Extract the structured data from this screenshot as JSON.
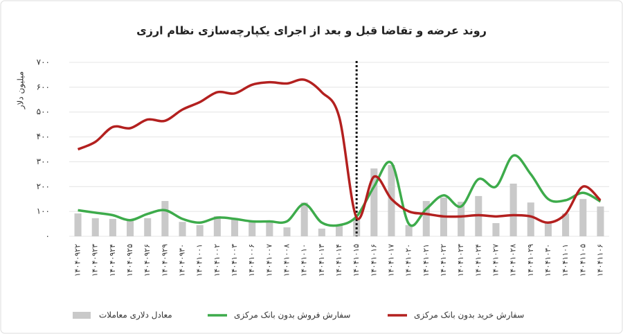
{
  "chart_data": {
    "type": "combo",
    "title": "روند عرضه و تقاضا قبل و بعد از اجرای یکپارچه‌سازی نظام ارزی",
    "y_label": "میلیون دلار",
    "categories": [
      "۱۴۰۴۰۹۲۲",
      "۱۴۰۴۰۹۲۳",
      "۱۴۰۴۰۹۲۴",
      "۱۴۰۴۰۹۲۵",
      "۱۴۰۴۰۹۲۶",
      "۱۴۰۴۰۹۲۹",
      "۱۴۰۴۰۹۳۰",
      "۱۴۰۴۱۰۰۱",
      "۱۴۰۴۱۰۰۲",
      "۱۴۰۴۱۰۰۳",
      "۱۴۰۴۱۰۰۶",
      "۱۴۰۴۱۰۰۷",
      "۱۴۰۴۱۰۰۸",
      "۱۴۰۴۱۰۱۰",
      "۱۴۰۴۱۰۱۳",
      "۱۴۰۴۱۰۱۴",
      "۱۴۰۴۱۰۱۵",
      "۱۴۰۴۱۰۱۶",
      "۱۴۰۴۱۰۱۷",
      "۱۴۰۴۱۰۲۰",
      "۱۴۰۴۱۰۲۱",
      "۱۴۰۴۱۰۲۲",
      "۱۴۰۴۱۰۲۳",
      "۱۴۰۴۱۰۲۴",
      "۱۴۰۴۱۰۲۷",
      "۱۴۰۴۱۰۲۸",
      "۱۴۰۴۱۰۲۹",
      "۱۴۰۴۱۰۳۰",
      "۱۴۰۴۱۱۰۱",
      "۱۴۰۴۱۱۰۵",
      "۱۴۰۴۱۱۰۶"
    ],
    "series": [
      {
        "name": "معادل دلاری معاملات",
        "type": "bar",
        "color": "#c9c9c9",
        "values": [
          92,
          73,
          70,
          64,
          73,
          142,
          58,
          45,
          81,
          73,
          64,
          58,
          36,
          136,
          31,
          45,
          73,
          273,
          287,
          45,
          142,
          156,
          139,
          162,
          53,
          212,
          136,
          58,
          92,
          150,
          120
        ]
      },
      {
        "name": "سفارش فروش بدون بانک مرکزی",
        "type": "line",
        "color": "#3dab4b",
        "values": [
          105,
          95,
          85,
          65,
          90,
          105,
          70,
          55,
          75,
          70,
          60,
          60,
          60,
          130,
          55,
          45,
          80,
          200,
          295,
          50,
          110,
          165,
          120,
          230,
          200,
          325,
          250,
          150,
          145,
          175,
          140
        ]
      },
      {
        "name": "سفارش خرید بدون بانک مرکزی",
        "type": "line",
        "color": "#b3201f",
        "values": [
          350,
          380,
          440,
          435,
          470,
          465,
          510,
          540,
          580,
          575,
          610,
          620,
          615,
          630,
          580,
          480,
          75,
          240,
          150,
          100,
          90,
          80,
          80,
          85,
          80,
          85,
          80,
          55,
          90,
          200,
          145
        ]
      }
    ],
    "ylim": [
      0,
      700
    ],
    "yticks": [
      {
        "value": 0,
        "label": "۰"
      },
      {
        "value": 100,
        "label": "۱۰۰"
      },
      {
        "value": 200,
        "label": "۲۰۰"
      },
      {
        "value": 300,
        "label": "۳۰۰"
      },
      {
        "value": 400,
        "label": "۴۰۰"
      },
      {
        "value": 500,
        "label": "۵۰۰"
      },
      {
        "value": 600,
        "label": "۶۰۰"
      },
      {
        "value": 700,
        "label": "۷۰۰"
      }
    ],
    "grid": true,
    "legend": "bottom"
  }
}
